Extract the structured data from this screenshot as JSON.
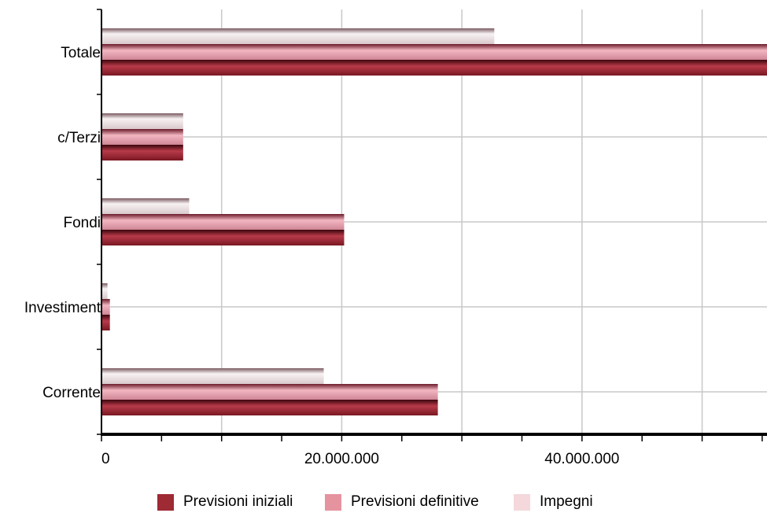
{
  "chart_data": {
    "type": "bar",
    "orientation": "horizontal",
    "categories": [
      "Totale",
      "c/Terzi",
      "Fondi",
      "Investimenti",
      "Corrente"
    ],
    "category_labels": [
      "Totale",
      "c/Terzi",
      "Fondi",
      "Investiment",
      "Corrente"
    ],
    "series": [
      {
        "name": "Impegni",
        "values": [
          32700000,
          6800000,
          7300000,
          500000,
          18500000
        ],
        "color": "#f2d6db"
      },
      {
        "name": "Previsioni definitive",
        "values": [
          56000000,
          6800000,
          20200000,
          700000,
          28000000
        ],
        "color": "#e8a0ab"
      },
      {
        "name": "Previsioni iniziali",
        "values": [
          56000000,
          6800000,
          20200000,
          700000,
          28000000
        ],
        "color": "#a33040"
      }
    ],
    "xlim": [
      0,
      55400000
    ],
    "xticks": [
      0,
      20000000,
      40000000
    ],
    "xtick_labels": [
      "0",
      "20.000.000",
      "40.000.000"
    ],
    "grid": true,
    "legend": {
      "position": "bottom",
      "items": [
        {
          "label": "Previsioni iniziali",
          "color": "#9e2a34"
        },
        {
          "label": "Previsioni definitive",
          "color": "#e693a0"
        },
        {
          "label": "Impegni",
          "color": "#f4d8dc"
        }
      ]
    }
  }
}
